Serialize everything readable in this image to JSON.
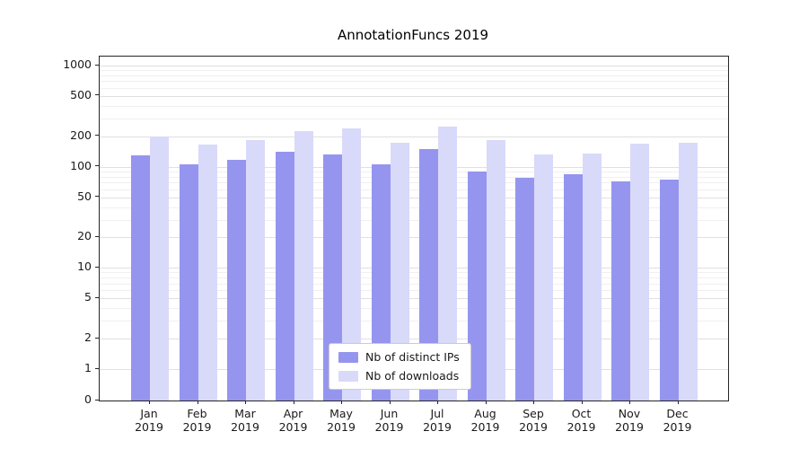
{
  "title": "AnnotationFuncs 2019",
  "legend": [
    {
      "label": "Nb of distinct IPs",
      "color": "#9595ef"
    },
    {
      "label": "Nb of downloads",
      "color": "#d9d9fa"
    }
  ],
  "chart_data": {
    "type": "bar",
    "title": "AnnotationFuncs 2019",
    "yscale": "symlog",
    "grid": true,
    "legend_position": "lower center",
    "ylim": [
      0,
      1400
    ],
    "yticks": [
      0,
      1,
      2,
      5,
      10,
      20,
      50,
      100,
      200,
      500,
      1000
    ],
    "categories": [
      {
        "month": "Jan",
        "year": "2019"
      },
      {
        "month": "Feb",
        "year": "2019"
      },
      {
        "month": "Mar",
        "year": "2019"
      },
      {
        "month": "Apr",
        "year": "2019"
      },
      {
        "month": "May",
        "year": "2019"
      },
      {
        "month": "Jun",
        "year": "2019"
      },
      {
        "month": "Jul",
        "year": "2019"
      },
      {
        "month": "Aug",
        "year": "2019"
      },
      {
        "month": "Sep",
        "year": "2019"
      },
      {
        "month": "Oct",
        "year": "2019"
      },
      {
        "month": "Nov",
        "year": "2019"
      },
      {
        "month": "Dec",
        "year": "2019"
      }
    ],
    "series": [
      {
        "name": "Nb of distinct IPs",
        "color": "#9595ef",
        "values": [
          130,
          105,
          118,
          140,
          133,
          105,
          148,
          90,
          78,
          84,
          71,
          74
        ]
      },
      {
        "name": "Nb of downloads",
        "color": "#d9d9fa",
        "values": [
          200,
          165,
          185,
          225,
          240,
          172,
          248,
          185,
          133,
          134,
          168,
          173
        ]
      }
    ]
  }
}
